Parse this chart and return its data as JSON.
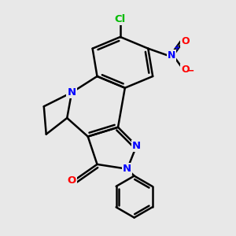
{
  "background_color": "#e8e8e8",
  "bond_color": "#000000",
  "bond_width": 1.8,
  "atom_colors": {
    "N": "#0000ff",
    "O": "#ff0000",
    "Cl": "#00bb00",
    "C": "#000000"
  }
}
